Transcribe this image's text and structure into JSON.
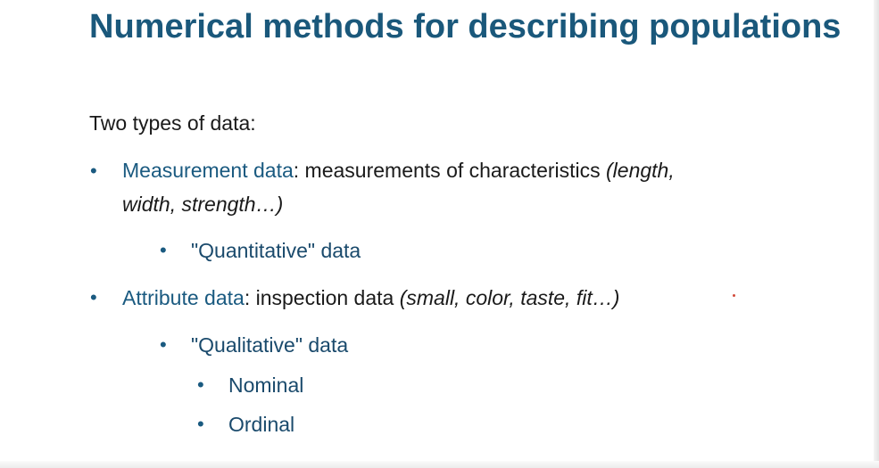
{
  "slide": {
    "title": "Numerical methods for describing populations",
    "intro": "Two types of data:",
    "bullet_glyph": "•",
    "items": [
      {
        "term": "Measurement data",
        "separator": ":",
        "text": " measurements of characteristics ",
        "examples_line1": "(length,",
        "examples_line2": "width, strength…)"
      },
      {
        "text": "\"Quantitative\" data"
      },
      {
        "term": "Attribute data",
        "separator": ":",
        "text": " inspection data ",
        "examples": "(small, color, taste, fit…)"
      },
      {
        "text": "\"Qualitative\" data"
      },
      {
        "text": "Nominal"
      },
      {
        "text": "Ordinal"
      }
    ]
  }
}
